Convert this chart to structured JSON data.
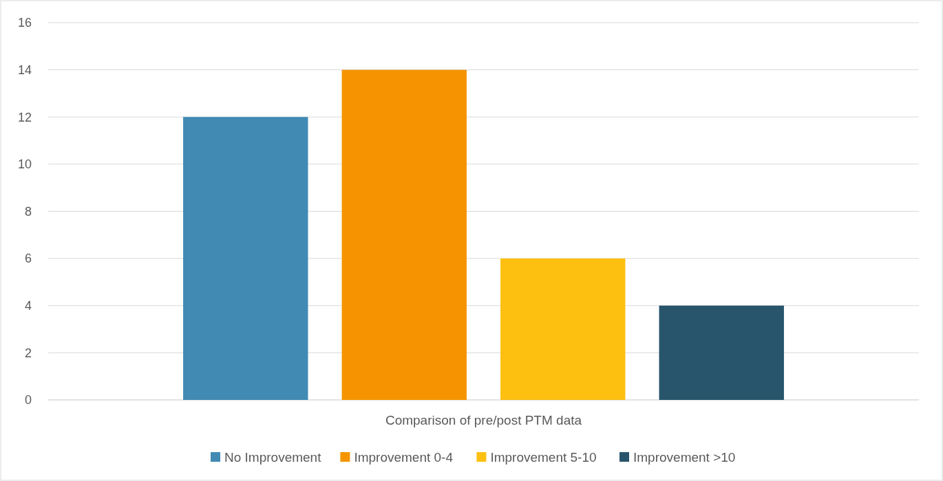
{
  "chart_data": {
    "type": "bar",
    "categories": [
      "Comparison of pre/post PTM data"
    ],
    "series": [
      {
        "name": "No Improvement",
        "color": "#418ab3",
        "values": [
          12
        ]
      },
      {
        "name": "Improvement 0-4",
        "color": "#f59400",
        "values": [
          14
        ]
      },
      {
        "name": "Improvement 5-10",
        "color": "#fdc010",
        "values": [
          6
        ]
      },
      {
        "name": "Improvement >10",
        "color": "#28556c",
        "values": [
          4
        ]
      }
    ],
    "ylim": [
      0,
      16
    ],
    "yticks": [
      0,
      2,
      4,
      6,
      8,
      10,
      12,
      14,
      16
    ],
    "grid": "y",
    "legend": "bottom"
  }
}
